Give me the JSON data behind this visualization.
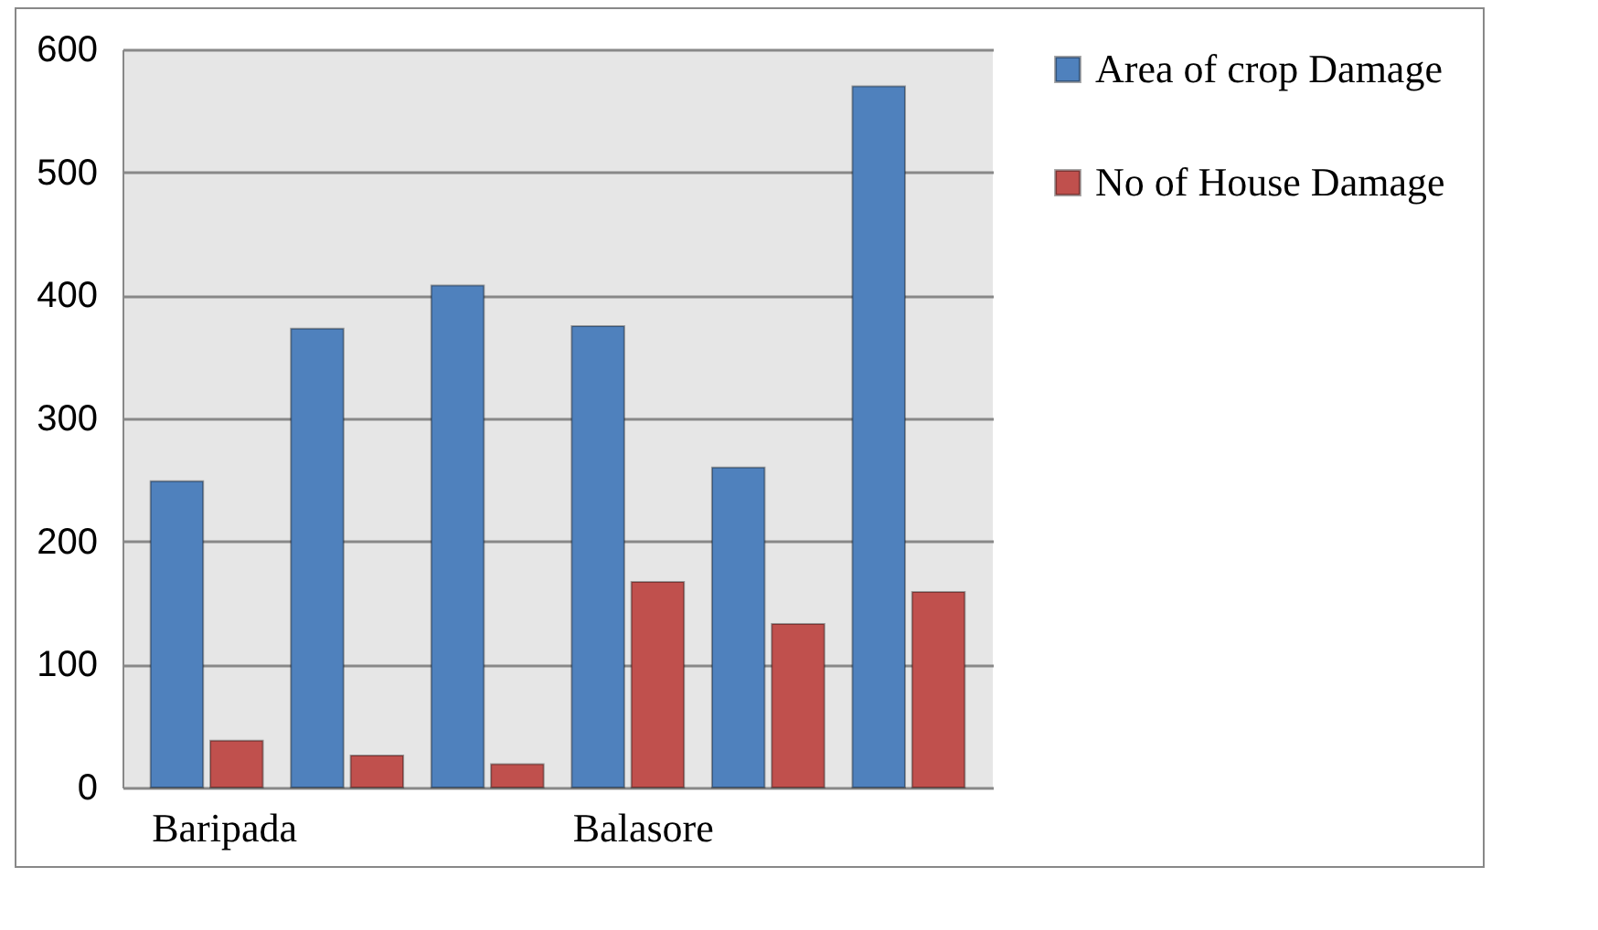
{
  "chart_data": {
    "type": "bar",
    "categories": [
      "Baripada",
      null,
      null,
      "Balasore",
      null,
      null
    ],
    "series": [
      {
        "name": "Area of crop Damage",
        "color": "#4f81bd",
        "values": [
          249,
          373,
          408,
          375,
          260,
          570
        ]
      },
      {
        "name": "No of House Damage",
        "color": "#c0504d",
        "values": [
          38,
          26,
          19,
          167,
          133,
          159
        ]
      }
    ],
    "ylim": [
      0,
      600
    ],
    "yticks": [
      0,
      100,
      200,
      300,
      400,
      500,
      600
    ],
    "grid": "y",
    "legend": "right"
  }
}
